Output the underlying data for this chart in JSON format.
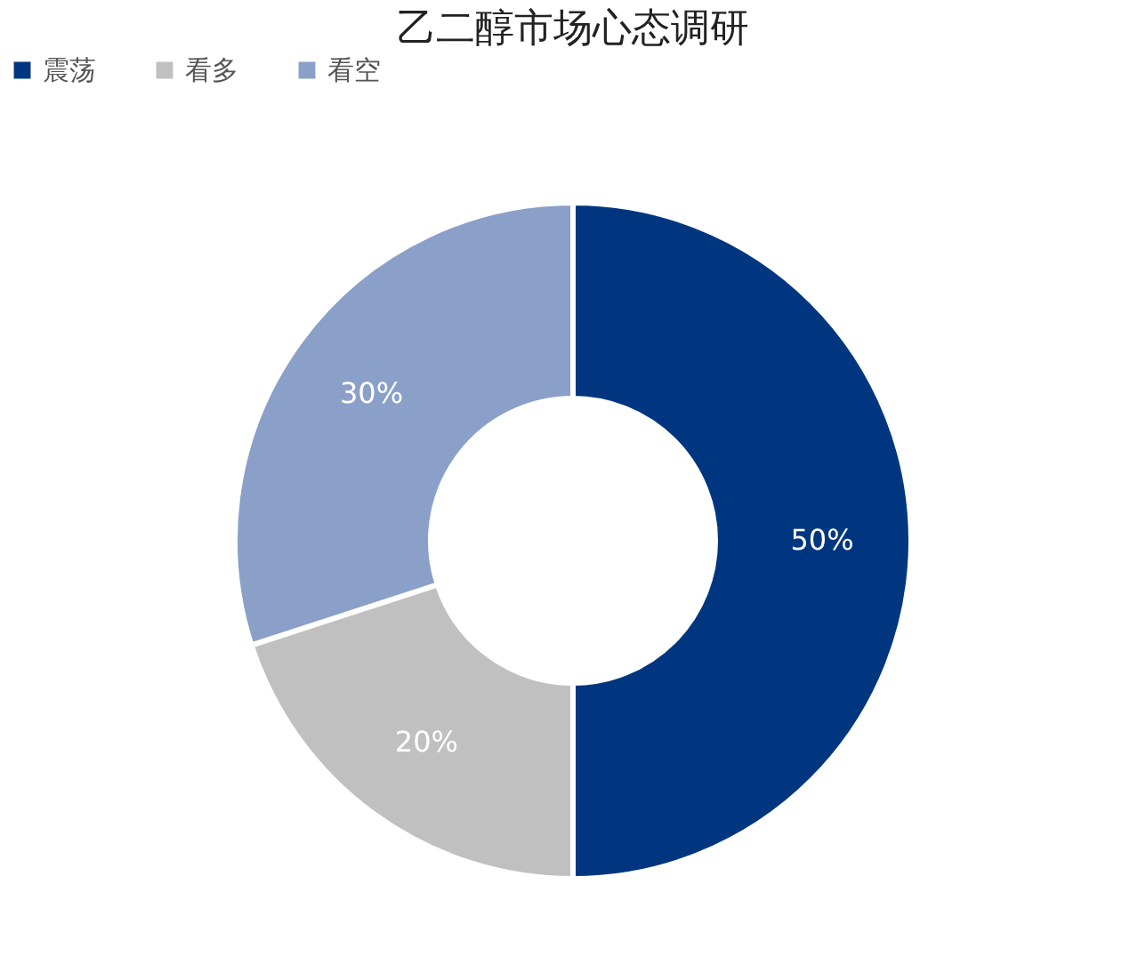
{
  "chart_data": {
    "type": "donut",
    "title": "乙二醇市场心态调研",
    "categories": [
      "震荡",
      "看多",
      "看空"
    ],
    "values": [
      50,
      20,
      30
    ],
    "colors": [
      "#003680",
      "#c0c0c0",
      "#8aa0c8"
    ],
    "value_labels": [
      "50%",
      "20%",
      "30%"
    ],
    "legend": "top"
  }
}
